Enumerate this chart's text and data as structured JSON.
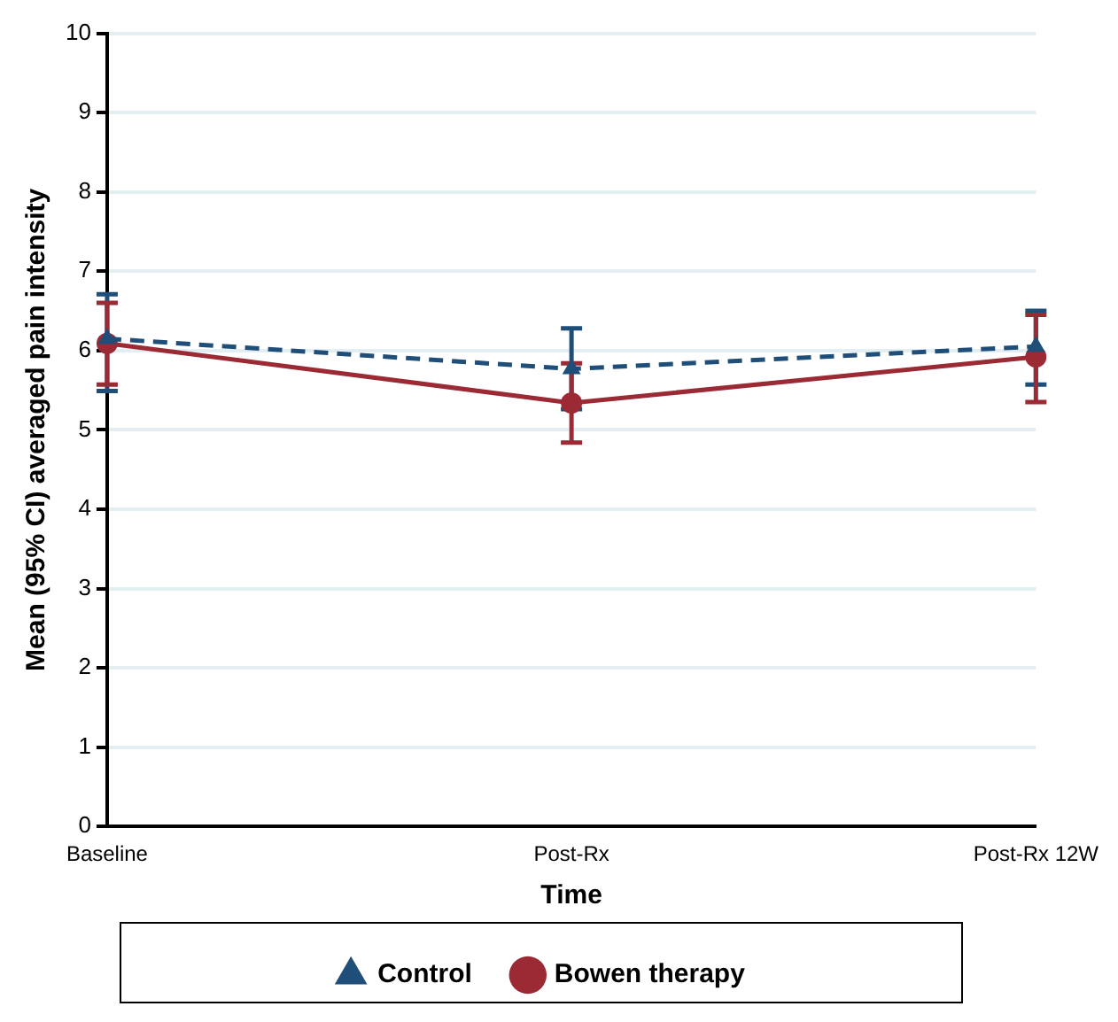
{
  "chart_data": {
    "type": "line",
    "xlabel": "Time",
    "ylabel": "Mean (95% CI) averaged pain intensity",
    "categories": [
      "Baseline",
      "Post-Rx",
      "Post-Rx 12W"
    ],
    "series": [
      {
        "name": "Control",
        "color": "#1f4e79",
        "values": [
          6.15,
          5.77,
          6.05
        ],
        "errors": [
          [
            5.49,
            6.71
          ],
          [
            5.26,
            6.28
          ],
          [
            5.57,
            6.5
          ]
        ],
        "marker": "triangle",
        "line_style": "dashed"
      },
      {
        "name": "Bowen therapy",
        "color": "#9b2a35",
        "values": [
          6.09,
          5.34,
          5.92
        ],
        "errors": [
          [
            5.57,
            6.6
          ],
          [
            4.84,
            5.84
          ],
          [
            5.35,
            6.45
          ]
        ],
        "marker": "circle",
        "line_style": "solid"
      }
    ],
    "ylim": [
      0,
      10
    ],
    "yticks": [
      0,
      1,
      2,
      3,
      4,
      5,
      6,
      7,
      8,
      9,
      10
    ],
    "grid": "y",
    "legend": "bottom"
  }
}
